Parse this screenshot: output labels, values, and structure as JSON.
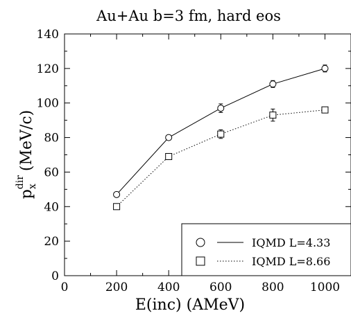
{
  "chart_data": {
    "type": "line",
    "title": "Au+Au b=3 fm, hard eos",
    "xlabel": "E(inc) (AMeV)",
    "ylabel": {
      "base": "p",
      "sub": "x",
      "sup": "dir",
      "unit": "(MeV/c)"
    },
    "xlim": [
      0,
      1100
    ],
    "ylim": [
      0,
      140
    ],
    "xticks": [
      0,
      200,
      400,
      600,
      800,
      1000
    ],
    "yticks": [
      0,
      20,
      40,
      60,
      80,
      100,
      120,
      140
    ],
    "grid": false,
    "legend_position": "bottom-right",
    "series": [
      {
        "name": "IQMD L=4.33",
        "marker": "circle",
        "line": "solid",
        "x": [
          200,
          400,
          600,
          800,
          1000
        ],
        "y": [
          47,
          80,
          97,
          111,
          120
        ],
        "err": [
          1,
          1,
          2.5,
          2,
          2
        ]
      },
      {
        "name": "IQMD L=8.66",
        "marker": "square",
        "line": "dotted",
        "x": [
          200,
          400,
          600,
          800,
          1000
        ],
        "y": [
          40,
          69,
          82,
          93,
          96
        ],
        "err": [
          1,
          1.5,
          2.5,
          3.5,
          1.5
        ]
      }
    ]
  }
}
